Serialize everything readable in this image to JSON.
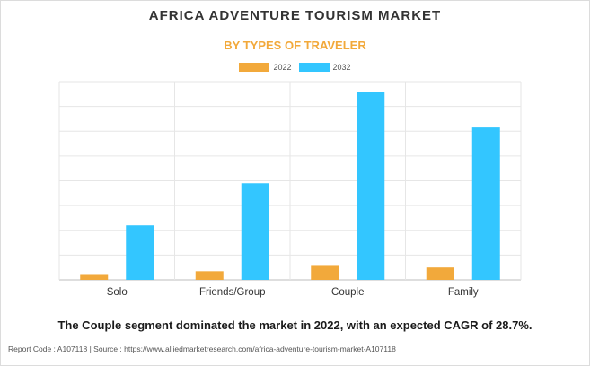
{
  "header": {
    "title": "AFRICA ADVENTURE TOURISM MARKET",
    "subtitle": "BY TYPES OF TRAVELER"
  },
  "chart_data": {
    "type": "bar",
    "categories": [
      "Solo",
      "Friends/Group",
      "Couple",
      "Family"
    ],
    "series": [
      {
        "name": "2022",
        "color": "#f2a93b",
        "values": [
          0.2,
          0.35,
          0.6,
          0.5
        ]
      },
      {
        "name": "2032",
        "color": "#33c6ff",
        "values": [
          2.2,
          3.9,
          7.6,
          6.15
        ]
      }
    ],
    "ylim": [
      0,
      8
    ],
    "grid": true,
    "legend_position": "top-center"
  },
  "footer": {
    "summary": "The Couple segment dominated the market in 2022, with an expected CAGR of 28.7%.",
    "source": "Report Code : A107118  |  Source : https://www.alliedmarketresearch.com/africa-adventure-tourism-market-A107118"
  }
}
